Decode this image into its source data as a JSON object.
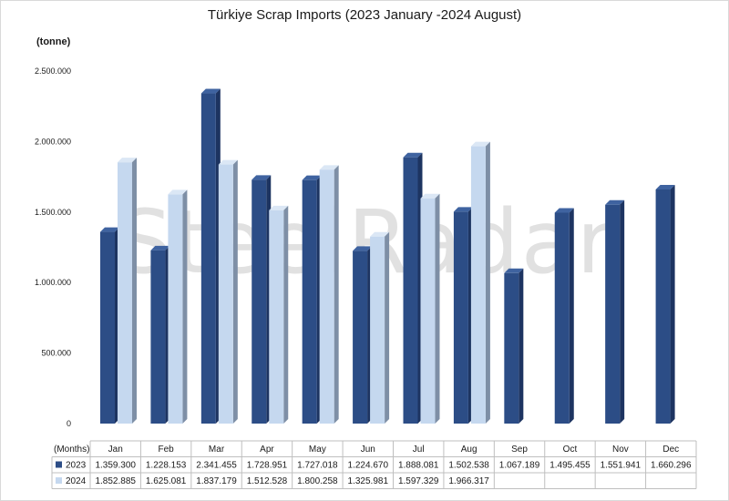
{
  "title": "Türkiye Scrap Imports (2023 January -2024 August)",
  "unit_label": "(tonne)",
  "watermark": "SteelRadar",
  "table_header_label": "(Months)",
  "chart_data": {
    "type": "bar",
    "title": "Türkiye Scrap Imports (2023 January -2024 August)",
    "ylabel": "(tonne)",
    "ylim": [
      0,
      2500000
    ],
    "yticks": [
      0,
      500000,
      1000000,
      1500000,
      2000000,
      2500000
    ],
    "ytick_labels": [
      "0",
      "500.000",
      "1.000.000",
      "1.500.000",
      "2.000.000",
      "2.500.000"
    ],
    "categories": [
      "Jan",
      "Feb",
      "Mar",
      "Apr",
      "May",
      "Jun",
      "Jul",
      "Aug",
      "Sep",
      "Oct",
      "Nov",
      "Dec"
    ],
    "series": [
      {
        "name": "2023",
        "color": "#2c4d86",
        "values": [
          1359300,
          1228153,
          2341455,
          1728951,
          1727018,
          1224670,
          1888081,
          1502538,
          1067189,
          1495455,
          1551941,
          1660296
        ],
        "labels": [
          "1.359.300",
          "1.228.153",
          "2.341.455",
          "1.728.951",
          "1.727.018",
          "1.224.670",
          "1.888.081",
          "1.502.538",
          "1.067.189",
          "1.495.455",
          "1.551.941",
          "1.660.296"
        ]
      },
      {
        "name": "2024",
        "color": "#c5d8ef",
        "values": [
          1852885,
          1625081,
          1837179,
          1512528,
          1800258,
          1325981,
          1597329,
          1966317,
          null,
          null,
          null,
          null
        ],
        "labels": [
          "1.852.885",
          "1.625.081",
          "1.837.179",
          "1.512.528",
          "1.800.258",
          "1.325.981",
          "1.597.329",
          "1.966.317",
          "",
          "",
          "",
          ""
        ]
      }
    ],
    "grid": false,
    "legend": "data-table"
  }
}
